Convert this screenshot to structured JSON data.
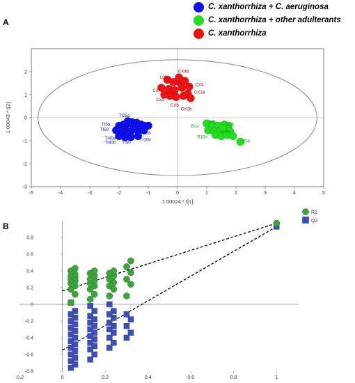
{
  "legend_top": [
    {
      "label": "C. xanthorrhiza + C. aeruginosa",
      "color": "#1010ee"
    },
    {
      "label": "C. xanthorrhiza + other adulterants",
      "color": "#22dd22"
    },
    {
      "label": "C. xanthorrhiza",
      "color": "#ee1111"
    }
  ],
  "panel_a": {
    "label": "A"
  },
  "panel_b": {
    "label": "B"
  },
  "chart_data": [
    {
      "type": "scatter",
      "xlabel": "1.00024 * t[1]",
      "ylabel": "1.00043 * t[2]",
      "xlim": [
        -5,
        5
      ],
      "ylim": [
        -3,
        3
      ],
      "xticks": [
        "-5",
        "-4",
        "-3",
        "-2",
        "-1",
        "0",
        "1",
        "2",
        "3",
        "4",
        "5"
      ],
      "yticks": [
        "-3",
        "-2",
        "-1",
        "0",
        "1",
        "2"
      ],
      "ellipse": {
        "cx": 0,
        "cy": 0,
        "rx": 4.77,
        "ry": 2.52
      },
      "series": [
        {
          "name": "C. xanthorrhiza + C. aeruginosa",
          "color": "#1010ee",
          "points": [
            [
              -2.0,
              -0.35
            ],
            [
              -1.85,
              -0.3
            ],
            [
              -1.7,
              -0.25
            ],
            [
              -1.55,
              -0.2
            ],
            [
              -1.4,
              -0.22
            ],
            [
              -1.25,
              -0.3
            ],
            [
              -2.1,
              -0.55
            ],
            [
              -1.9,
              -0.6
            ],
            [
              -1.75,
              -0.55
            ],
            [
              -1.6,
              -0.6
            ],
            [
              -1.45,
              -0.5
            ],
            [
              -1.3,
              -0.5
            ],
            [
              -2.0,
              -0.8
            ],
            [
              -1.8,
              -0.85
            ],
            [
              -1.6,
              -0.85
            ],
            [
              -1.35,
              -0.8
            ],
            [
              -1.15,
              -0.55
            ],
            [
              -1.5,
              -0.35
            ],
            [
              -1.7,
              -0.15
            ],
            [
              -1.95,
              -0.45
            ],
            [
              -1.15,
              -0.35
            ],
            [
              -1.0,
              -0.35
            ]
          ],
          "labels": [
            {
              "text": "TI25a",
              "x": -1.82,
              "y": 0.03
            },
            {
              "text": "TI5a",
              "x": -2.45,
              "y": -0.35
            },
            {
              "text": "TI25",
              "x": -1.05,
              "y": -0.32
            },
            {
              "text": "TI50",
              "x": -2.5,
              "y": -0.58
            },
            {
              "text": "TI25b",
              "x": -1.1,
              "y": -0.72
            },
            {
              "text": "TI40a",
              "x": -2.3,
              "y": -0.95
            },
            {
              "text": "TI40b",
              "x": -2.3,
              "y": -1.13
            },
            {
              "text": "TI50",
              "x": -1.75,
              "y": -1.13
            },
            {
              "text": "TI10b",
              "x": -1.1,
              "y": -1.02
            }
          ]
        },
        {
          "name": "C. xanthorrhiza + other adulterants",
          "color": "#22dd22",
          "points": [
            [
              1.0,
              -0.25
            ],
            [
              1.2,
              -0.3
            ],
            [
              1.4,
              -0.35
            ],
            [
              1.6,
              -0.3
            ],
            [
              1.75,
              -0.35
            ],
            [
              1.05,
              -0.55
            ],
            [
              1.25,
              -0.6
            ],
            [
              1.45,
              -0.55
            ],
            [
              1.6,
              -0.55
            ],
            [
              1.8,
              -0.6
            ],
            [
              1.3,
              -0.75
            ],
            [
              1.5,
              -0.8
            ],
            [
              1.7,
              -0.75
            ],
            [
              1.9,
              -0.8
            ],
            [
              2.15,
              -1.05
            ],
            [
              1.55,
              -0.45
            ]
          ],
          "labels": [
            {
              "text": "B40",
              "x": 1.2,
              "y": -0.25
            },
            {
              "text": "B25",
              "x": 1.8,
              "y": -0.35
            },
            {
              "text": "B2a",
              "x": 0.6,
              "y": -0.42
            },
            {
              "text": "B16b",
              "x": 1.65,
              "y": -0.68
            },
            {
              "text": "B10a",
              "x": 0.85,
              "y": -0.9
            },
            {
              "text": "B50",
              "x": 2.35,
              "y": -1.08
            }
          ]
        },
        {
          "name": "C. xanthorrhiza",
          "color": "#ee1111",
          "points": [
            [
              -0.35,
              1.65
            ],
            [
              -0.15,
              1.55
            ],
            [
              0.05,
              1.55
            ],
            [
              0.25,
              1.6
            ],
            [
              0.4,
              1.35
            ],
            [
              -0.55,
              1.3
            ],
            [
              -0.3,
              1.25
            ],
            [
              -0.1,
              1.2
            ],
            [
              0.15,
              1.3
            ],
            [
              0.35,
              1.05
            ],
            [
              -0.45,
              1.0
            ],
            [
              -0.25,
              0.95
            ],
            [
              -0.05,
              0.9
            ],
            [
              0.2,
              0.95
            ],
            [
              0.45,
              0.85
            ],
            [
              0.05,
              1.75
            ]
          ],
          "labels": [
            {
              "text": "CX4b",
              "x": 0.2,
              "y": 1.95
            },
            {
              "text": "CX1a",
              "x": -0.42,
              "y": 1.7
            },
            {
              "text": "CX4",
              "x": 0.75,
              "y": 1.38
            },
            {
              "text": "CX",
              "x": -0.75,
              "y": 1.12
            },
            {
              "text": "CX3a",
              "x": 0.75,
              "y": 1.05
            },
            {
              "text": "Cxa",
              "x": -0.6,
              "y": 0.72
            },
            {
              "text": "CXb",
              "x": -0.1,
              "y": 0.48
            },
            {
              "text": "CX2b",
              "x": 0.3,
              "y": 0.32
            }
          ]
        }
      ]
    },
    {
      "type": "scatter",
      "xlim": [
        -0.2,
        1.1
      ],
      "ylim": [
        -0.8,
        1.0
      ],
      "xticks": [
        "-0.2",
        "0",
        "0.2",
        "0.4",
        "0.6",
        "0.8",
        "1"
      ],
      "yticks": [
        "-0.8",
        "-0.6",
        "-0.4",
        "-0.2",
        "0",
        "0.2",
        "0.4",
        "0.6",
        "0.8"
      ],
      "series": [
        {
          "name": "R2",
          "color": "#3da33d",
          "marker": "circle",
          "regression": [
            [
              0,
              0.16
            ],
            [
              1,
              0.97
            ]
          ],
          "columns": [
            {
              "x": 0.05,
              "y": [
                0.02,
                0.12,
                0.18,
                0.22,
                0.25,
                0.28,
                0.3,
                0.32,
                0.34,
                0.36,
                0.4,
                0.43
              ]
            },
            {
              "x": 0.14,
              "y": [
                0.06,
                0.12,
                0.18,
                0.22,
                0.25,
                0.28,
                0.3,
                0.34,
                0.37,
                0.4
              ]
            },
            {
              "x": 0.23,
              "y": [
                0.1,
                0.18,
                0.22,
                0.26,
                0.3,
                0.34,
                0.37,
                0.4
              ]
            },
            {
              "x": 0.31,
              "y": [
                0.1,
                0.24,
                0.3,
                0.38,
                0.45,
                0.52
              ]
            },
            {
              "x": 1.0,
              "y": [
                0.97
              ]
            }
          ]
        },
        {
          "name": "Q2",
          "color": "#3e50b8",
          "marker": "square",
          "regression": [
            [
              0,
              -0.55
            ],
            [
              1,
              0.93
            ]
          ],
          "columns": [
            {
              "x": 0.05,
              "y": [
                0.02,
                -0.08,
                -0.12,
                -0.16,
                -0.2,
                -0.24,
                -0.28,
                -0.32,
                -0.36,
                -0.4,
                -0.44,
                -0.48,
                -0.52,
                -0.56,
                -0.6,
                -0.64,
                -0.68,
                -0.72,
                -0.76
              ]
            },
            {
              "x": 0.14,
              "y": [
                -0.02,
                -0.08,
                -0.14,
                -0.18,
                -0.22,
                -0.26,
                -0.3,
                -0.34,
                -0.38,
                -0.42,
                -0.46,
                -0.5,
                -0.54,
                -0.6,
                -0.66
              ]
            },
            {
              "x": 0.23,
              "y": [
                0.0,
                -0.08,
                -0.12,
                -0.16,
                -0.22,
                -0.26,
                -0.3,
                -0.34,
                -0.4,
                -0.46,
                -0.52
              ]
            },
            {
              "x": 0.31,
              "y": [
                -0.12,
                -0.18,
                -0.26,
                -0.34,
                -0.4
              ]
            },
            {
              "x": 1.0,
              "y": [
                0.93
              ]
            }
          ]
        }
      ]
    }
  ]
}
